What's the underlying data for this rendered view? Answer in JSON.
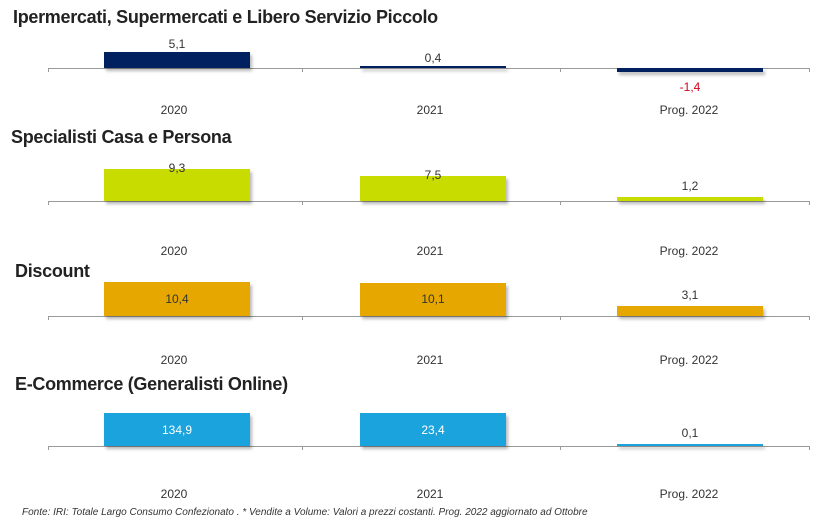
{
  "footnote": "Fonte: IRI: Totale Largo Consumo Confezionato . * Vendite a Volume: Valori a prezzi costanti. Prog. 2022 aggiornato ad Ottobre",
  "chart_data": [
    {
      "type": "bar",
      "title": "Ipermercati, Supermercati e Libero Servizio Piccolo",
      "categories": [
        "2020",
        "2021",
        "Prog. 2022"
      ],
      "values": [
        5.1,
        0.4,
        -1.4
      ],
      "value_labels": [
        "5,1",
        "0,4",
        "-1,4"
      ],
      "color": "#002060",
      "negative_label_color": "#d0021b"
    },
    {
      "type": "bar",
      "title": "Specialisti Casa e Persona",
      "categories": [
        "2020",
        "2021",
        "Prog. 2022"
      ],
      "values": [
        9.3,
        7.5,
        1.2
      ],
      "value_labels": [
        "9,3",
        "7,5",
        "1,2"
      ],
      "color": "#c8dc00"
    },
    {
      "type": "bar",
      "title": "Discount",
      "categories": [
        "2020",
        "2021",
        "Prog. 2022"
      ],
      "values": [
        10.4,
        10.1,
        3.1
      ],
      "value_labels": [
        "10,4",
        "10,1",
        "3,1"
      ],
      "color": "#e6a700"
    },
    {
      "type": "bar",
      "title": "E-Commerce (Generalisti Online)",
      "categories": [
        "2020",
        "2021",
        "Prog. 2022"
      ],
      "values": [
        134.9,
        23.4,
        0.1
      ],
      "value_labels": [
        "134,9",
        "23,4",
        "0,1"
      ],
      "color": "#1aa3dc"
    }
  ]
}
